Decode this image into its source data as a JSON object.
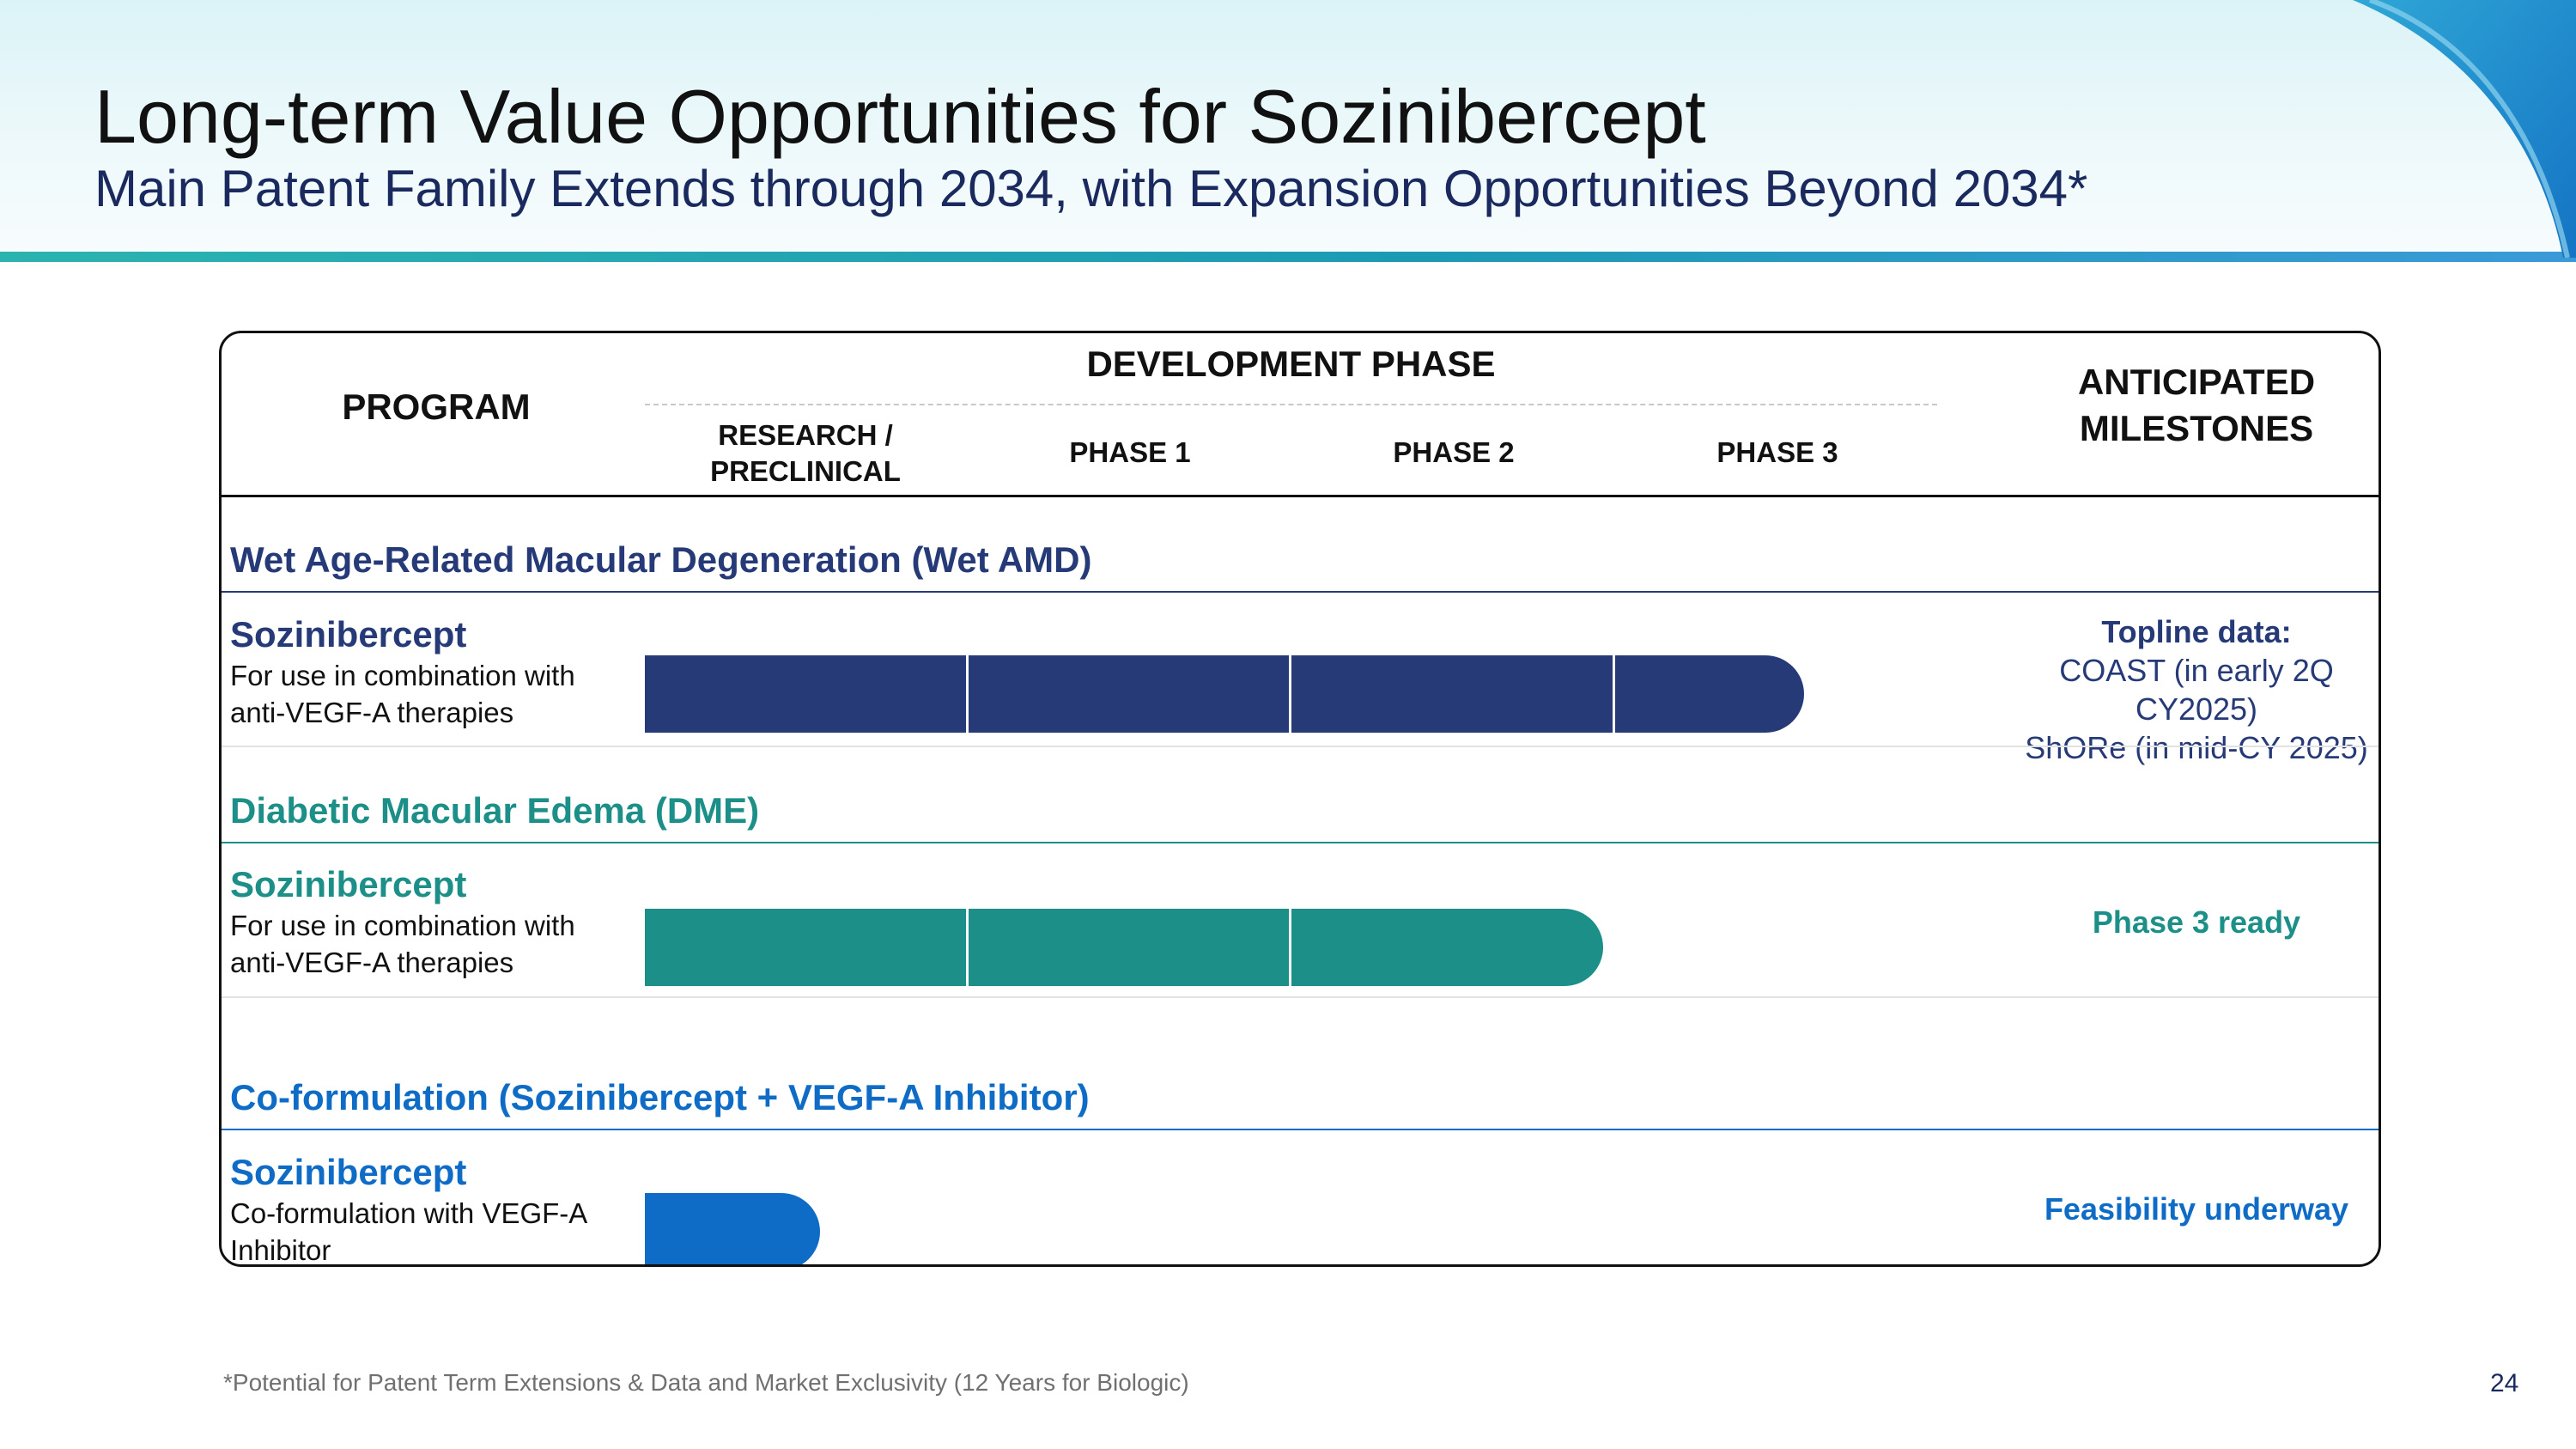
{
  "header": {
    "title": "Long-term Value Opportunities for Sozinibercept",
    "subtitle": "Main Patent Family Extends through 2034, with Expansion Opportunities Beyond 2034*"
  },
  "table": {
    "program_header": "PROGRAM",
    "dev_phase_header": "DEVELOPMENT PHASE",
    "milestones_header": "ANTICIPATED MILESTONES",
    "phases": [
      "RESEARCH / PRECLINICAL",
      "PHASE 1",
      "PHASE 2",
      "PHASE 3"
    ],
    "rows": [
      {
        "category": "Wet Age-Related Macular Degeneration (Wet AMD)",
        "program": "Sozinibercept",
        "description": "For use in combination with anti-VEGF-A therapies",
        "progress_phases": 3.58,
        "milestone_lines": [
          "Topline data:",
          "COAST (in early 2Q CY2025)",
          "ShORe (in mid-CY 2025)"
        ]
      },
      {
        "category": "Diabetic Macular Edema (DME)",
        "program": "Sozinibercept",
        "description": "For use in combination with anti-VEGF-A therapies",
        "progress_phases": 2.96,
        "milestone_lines": [
          "Phase 3 ready"
        ]
      },
      {
        "category": "Co-formulation (Sozinibercept + VEGF-A Inhibitor)",
        "program": "Sozinibercept",
        "description": "Co-formulation with VEGF-A Inhibitor",
        "progress_phases": 0.54,
        "milestone_lines": [
          "Feasibility underway"
        ]
      }
    ]
  },
  "footer": {
    "footnote": "*Potential for Patent Term Extensions & Data and Market Exclusivity (12 Years for Biologic)",
    "page_number": "24"
  },
  "colors": {
    "navy": "#263a78",
    "teal": "#1c8f88",
    "blue": "#0f6cc6",
    "title_navy": "#1a2a5e"
  }
}
